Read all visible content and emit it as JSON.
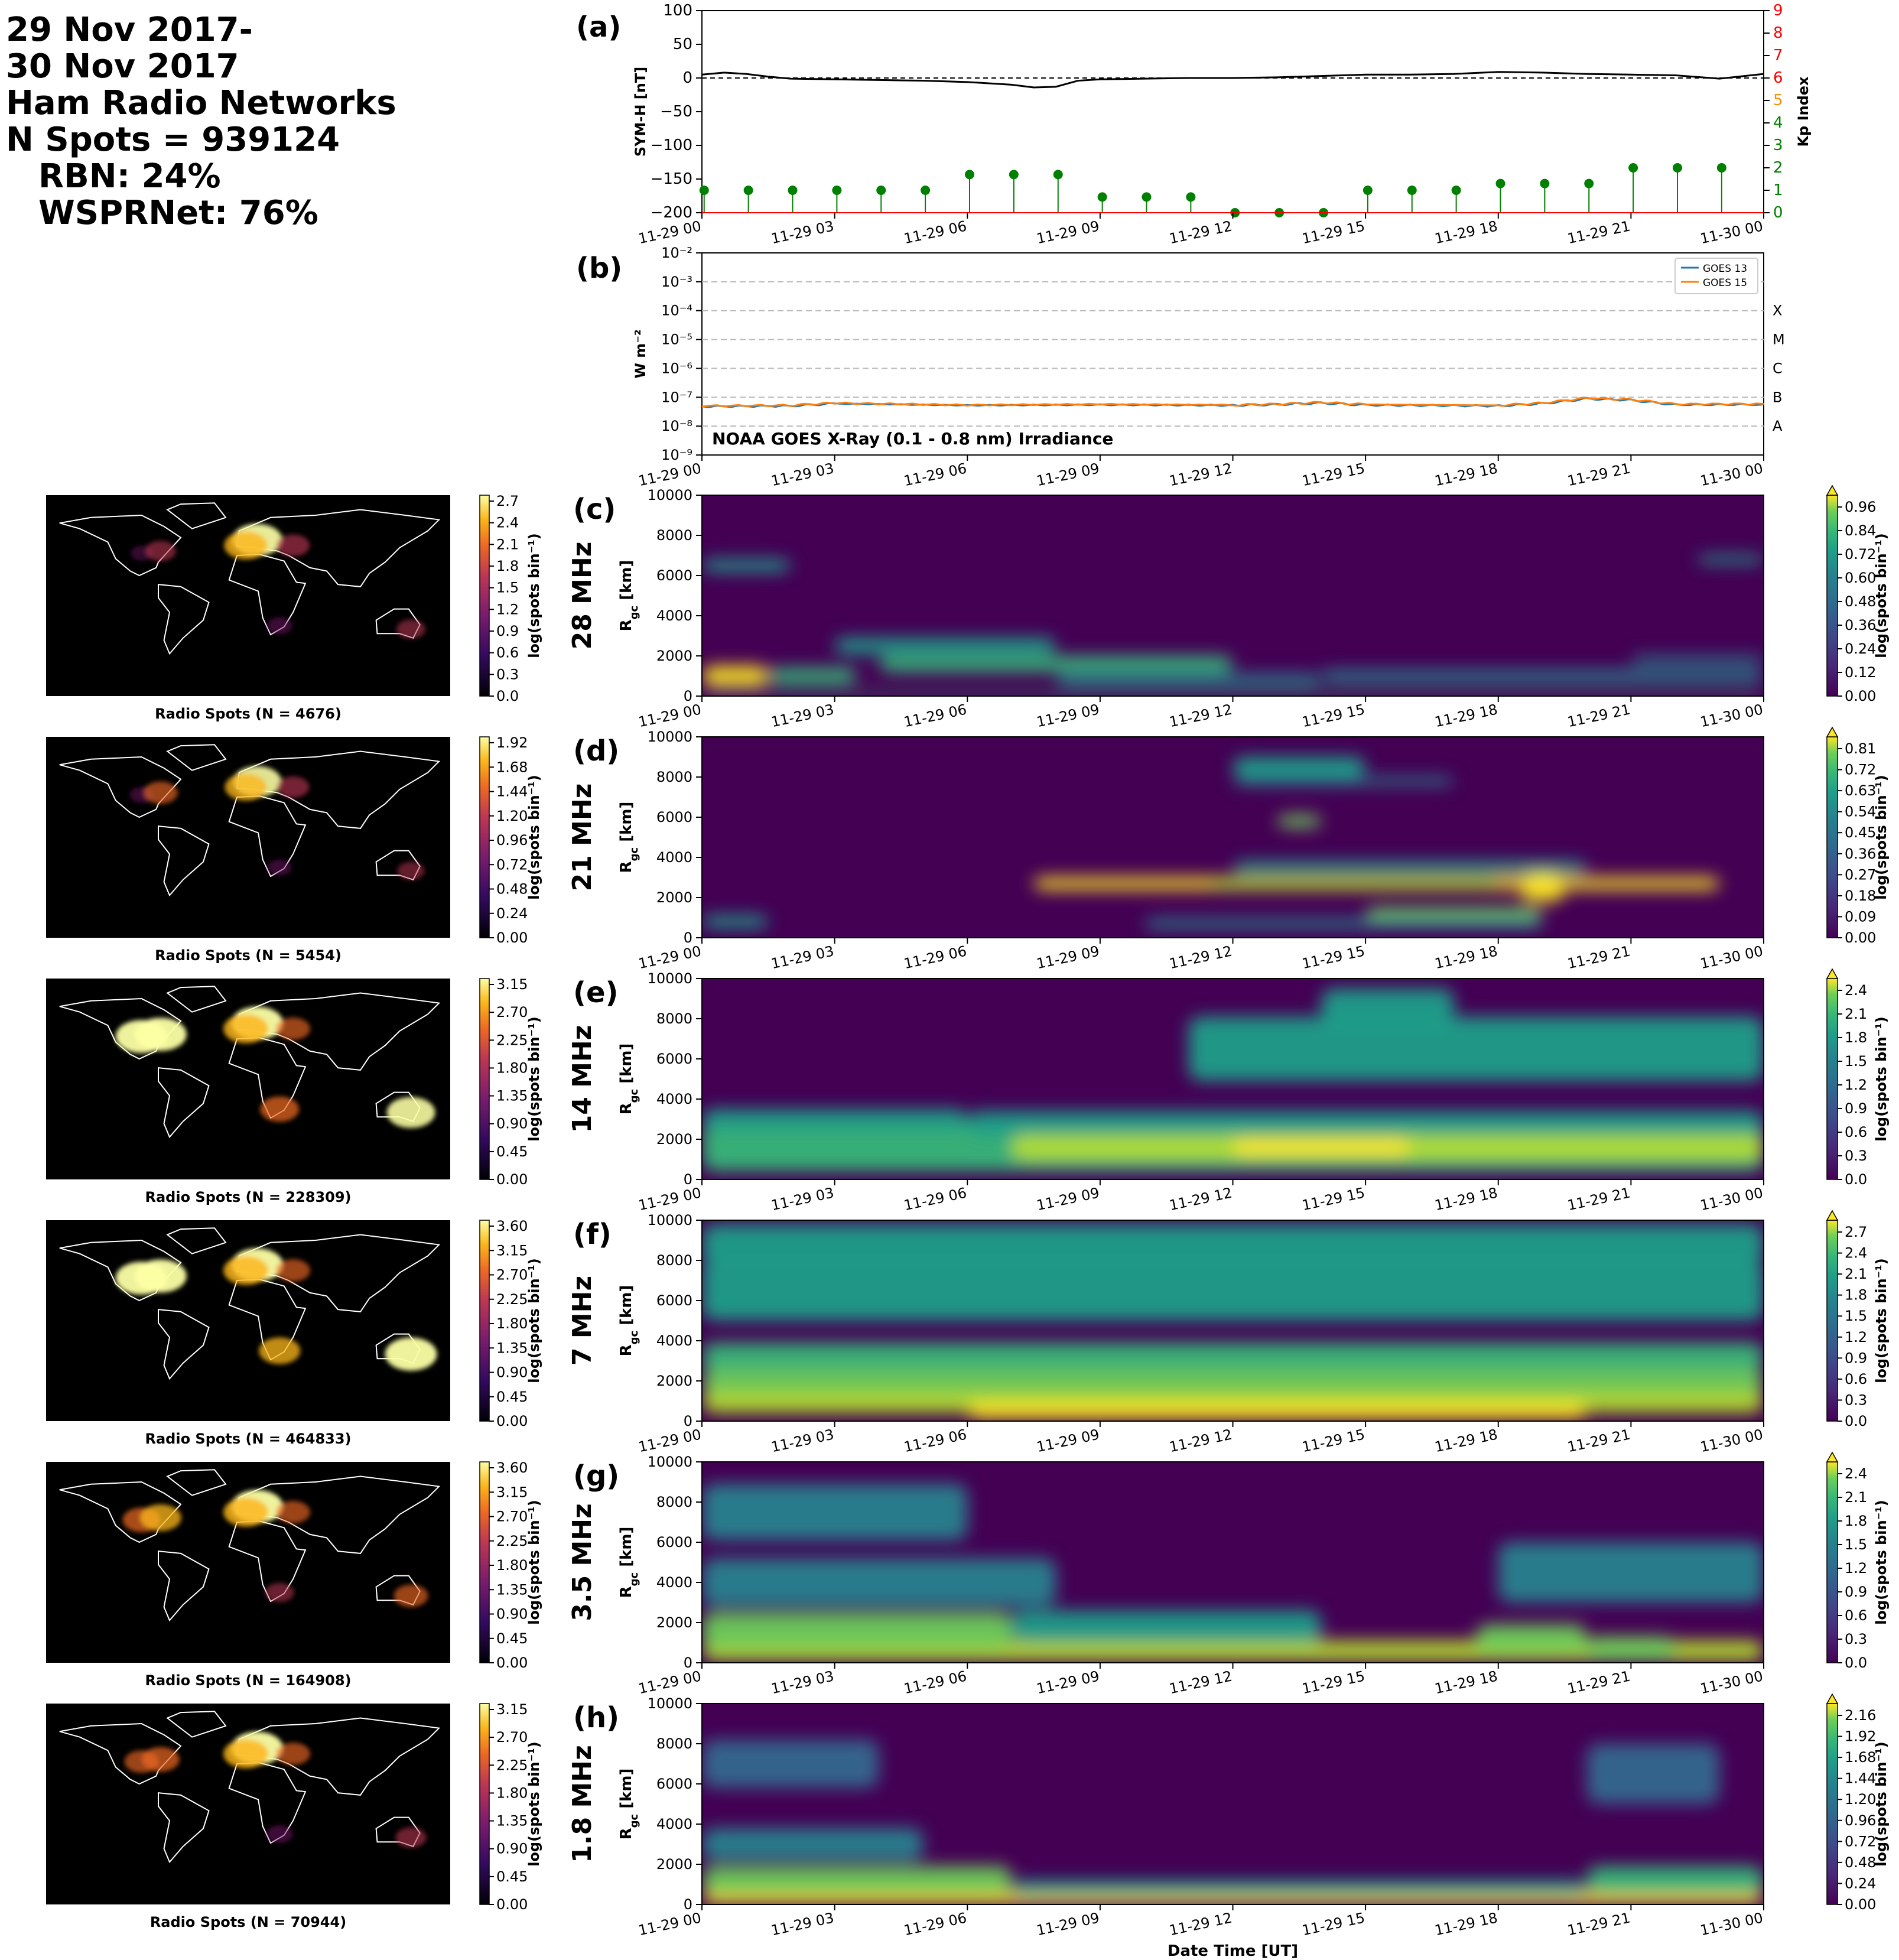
{
  "header": {
    "lines": [
      "29 Nov 2017-",
      "30 Nov 2017",
      "Ham Radio Networks",
      "N Spots = 939124"
    ],
    "rbn": "RBN: 24%",
    "wspr": "WSPRNet: 76%"
  },
  "time_ticks": [
    "11-29 00",
    "11-29 03",
    "11-29 06",
    "11-29 09",
    "11-29 12",
    "11-29 15",
    "11-29 18",
    "11-29 21",
    "11-30 00"
  ],
  "chart_data": [
    {
      "id": "a",
      "panel_label": "(a)",
      "type": "line",
      "ylabel": "SYM-H [nT]",
      "ylabel2": "Kp Index",
      "ylim": [
        -200,
        100
      ],
      "yticks": [
        100,
        50,
        0,
        -50,
        -100,
        -150,
        -200
      ],
      "y2lim": [
        0,
        9
      ],
      "y2ticks": [
        0,
        1,
        2,
        3,
        4,
        5,
        6,
        7,
        8,
        9
      ],
      "series": [
        {
          "name": "SYM-H",
          "x_hours": [
            0,
            0.5,
            1,
            1.5,
            2,
            3,
            4,
            5,
            6,
            7,
            7.5,
            8,
            8.5,
            9,
            10,
            11,
            12,
            13,
            14,
            15,
            16,
            17,
            18,
            19,
            20,
            21,
            22,
            23,
            24
          ],
          "values": [
            5,
            8,
            6,
            2,
            -1,
            -2,
            -3,
            -4,
            -6,
            -10,
            -14,
            -13,
            -4,
            -2,
            -1,
            0,
            0,
            1,
            3,
            5,
            5,
            6,
            9,
            8,
            6,
            5,
            4,
            -1,
            6
          ]
        },
        {
          "name": "Kp",
          "type": "stem",
          "x_hours": [
            0,
            1,
            2,
            3,
            4,
            5,
            6,
            7,
            8,
            9,
            10,
            11,
            12,
            13,
            14,
            15,
            16,
            17,
            18,
            19,
            20,
            21,
            22,
            23
          ],
          "values": [
            1,
            1,
            1,
            1,
            1,
            1,
            1.7,
            1.7,
            1.7,
            0.7,
            0.7,
            0.7,
            0,
            0,
            0,
            1,
            1,
            1,
            1.3,
            1.3,
            1.3,
            2,
            2,
            2
          ]
        }
      ]
    },
    {
      "id": "b",
      "panel_label": "(b)",
      "type": "line",
      "title": "NOAA GOES X-Ray (0.1 - 0.8 nm) Irradiance",
      "ylabel": "W m⁻²",
      "yscale": "log",
      "yticks": [
        "10⁻²",
        "10⁻³",
        "10⁻⁴",
        "10⁻⁵",
        "10⁻⁶",
        "10⁻⁷",
        "10⁻⁸",
        "10⁻⁹"
      ],
      "ylim_log10": [
        -9,
        -2
      ],
      "classes": [
        "X",
        "M",
        "C",
        "B",
        "A"
      ],
      "legend": [
        "GOES 13",
        "GOES 15"
      ],
      "series": [
        {
          "name": "GOES 13",
          "x_hours": [
            0,
            2,
            3,
            6,
            9,
            12,
            13,
            14,
            15,
            18,
            19,
            20,
            21,
            22,
            24
          ],
          "values_log10": [
            -7.32,
            -7.3,
            -7.22,
            -7.28,
            -7.26,
            -7.28,
            -7.25,
            -7.2,
            -7.27,
            -7.3,
            -7.22,
            -7.05,
            -7.1,
            -7.26,
            -7.25
          ]
        },
        {
          "name": "GOES 15",
          "x_hours": [
            0,
            2,
            3,
            6,
            9,
            12,
            13,
            14,
            15,
            18,
            19,
            20,
            21,
            22,
            24
          ],
          "values_log10": [
            -7.3,
            -7.28,
            -7.2,
            -7.27,
            -7.24,
            -7.27,
            -7.24,
            -7.18,
            -7.25,
            -7.28,
            -7.2,
            -7.03,
            -7.08,
            -7.24,
            -7.23
          ]
        }
      ]
    },
    {
      "id": "c",
      "panel_label": "(c)",
      "band": "28 MHz",
      "type": "heatmap",
      "ylabel": "Rgc [km]",
      "ylim": [
        0,
        10000
      ],
      "cbar_label": "log(spots bin⁻¹)",
      "cbar_ticks": [
        "0.00",
        "0.12",
        "0.24",
        "0.36",
        "0.48",
        "0.60",
        "0.72",
        "0.84",
        "0.96"
      ],
      "map_caption": "Radio Spots (N = 4676)",
      "map_cbar_ticks": [
        "0.0",
        "0.3",
        "0.6",
        "0.9",
        "1.2",
        "1.5",
        "1.8",
        "2.1",
        "2.4",
        "2.7"
      ],
      "blobs": [
        [
          0,
          1.5,
          1000,
          500,
          1
        ],
        [
          1.5,
          3.5,
          1000,
          400,
          0.6
        ],
        [
          3,
          8,
          2500,
          400,
          0.55
        ],
        [
          4,
          12,
          1600,
          400,
          0.6
        ],
        [
          8,
          14,
          800,
          300,
          0.4
        ],
        [
          0,
          2,
          6500,
          300,
          0.5
        ],
        [
          22.5,
          24,
          6800,
          200,
          0.5
        ],
        [
          14,
          24,
          1000,
          300,
          0.35
        ],
        [
          21,
          24,
          1800,
          200,
          0.4
        ],
        [
          0,
          24,
          100,
          80,
          0.6
        ]
      ]
    },
    {
      "id": "d",
      "panel_label": "(d)",
      "band": "21 MHz",
      "type": "heatmap",
      "ylabel": "Rgc [km]",
      "ylim": [
        0,
        10000
      ],
      "cbar_label": "log(spots bin⁻¹)",
      "cbar_ticks": [
        "0.00",
        "0.09",
        "0.18",
        "0.27",
        "0.36",
        "0.45",
        "0.54",
        "0.63",
        "0.72",
        "0.81"
      ],
      "map_caption": "Radio Spots (N = 5454)",
      "map_cbar_ticks": [
        "0.00",
        "0.24",
        "0.48",
        "0.72",
        "0.96",
        "1.20",
        "1.44",
        "1.68",
        "1.92"
      ],
      "blobs": [
        [
          7.5,
          23,
          2700,
          300,
          1
        ],
        [
          11.5,
          18,
          2700,
          300,
          0.9
        ],
        [
          15,
          19,
          1200,
          300,
          0.8
        ],
        [
          12,
          20,
          3500,
          300,
          0.55
        ],
        [
          12,
          15,
          8500,
          500,
          0.45
        ],
        [
          13,
          14,
          5800,
          300,
          0.8
        ],
        [
          18.5,
          19.5,
          2500,
          700,
          1
        ],
        [
          10,
          19,
          700,
          250,
          0.4
        ],
        [
          0,
          1.5,
          800,
          300,
          0.5
        ],
        [
          12,
          17,
          7800,
          200,
          0.4
        ]
      ]
    },
    {
      "id": "e",
      "panel_label": "(e)",
      "band": "14 MHz",
      "type": "heatmap",
      "ylabel": "Rgc [km]",
      "ylim": [
        0,
        10000
      ],
      "cbar_label": "log(spots bin⁻¹)",
      "cbar_ticks": [
        "0.0",
        "0.3",
        "0.6",
        "0.9",
        "1.2",
        "1.5",
        "1.8",
        "2.1",
        "2.4"
      ],
      "map_caption": "Radio Spots (N = 228309)",
      "map_cbar_ticks": [
        "0.00",
        "0.45",
        "0.90",
        "1.35",
        "1.80",
        "2.25",
        "2.70",
        "3.15"
      ],
      "blobs": [
        [
          0,
          24,
          1600,
          1200,
          0.6
        ],
        [
          7,
          24,
          1600,
          600,
          0.85
        ],
        [
          12,
          16,
          1600,
          400,
          1
        ],
        [
          0,
          6,
          3000,
          500,
          0.5
        ],
        [
          11,
          24,
          6500,
          1600,
          0.45
        ],
        [
          14,
          17,
          8500,
          1000,
          0.45
        ],
        [
          6,
          24,
          2800,
          600,
          0.55
        ]
      ]
    },
    {
      "id": "f",
      "panel_label": "(f)",
      "band": "7 MHz",
      "type": "heatmap",
      "ylabel": "Rgc [km]",
      "ylim": [
        0,
        10000
      ],
      "cbar_label": "log(spots bin⁻¹)",
      "cbar_ticks": [
        "0.0",
        "0.3",
        "0.6",
        "0.9",
        "1.2",
        "1.5",
        "1.8",
        "2.1",
        "2.4",
        "2.7"
      ],
      "map_caption": "Radio Spots (N = 464833)",
      "map_cbar_ticks": [
        "0.00",
        "0.45",
        "0.90",
        "1.35",
        "1.80",
        "2.25",
        "2.70",
        "3.15",
        "3.60"
      ],
      "blobs": [
        [
          0,
          24,
          1000,
          600,
          0.85
        ],
        [
          6,
          20,
          500,
          400,
          1
        ],
        [
          0,
          24,
          3200,
          700,
          0.6
        ],
        [
          0,
          24,
          6500,
          1500,
          0.45
        ],
        [
          0,
          24,
          8800,
          1000,
          0.45
        ],
        [
          0,
          24,
          2000,
          600,
          0.7
        ]
      ]
    },
    {
      "id": "g",
      "panel_label": "(g)",
      "band": "3.5 MHz",
      "type": "heatmap",
      "ylabel": "Rgc [km]",
      "ylim": [
        0,
        10000
      ],
      "cbar_label": "log(spots bin⁻¹)",
      "cbar_ticks": [
        "0.0",
        "0.3",
        "0.6",
        "0.9",
        "1.2",
        "1.5",
        "1.8",
        "2.1",
        "2.4"
      ],
      "map_caption": "Radio Spots (N = 164908)",
      "map_cbar_ticks": [
        "0.00",
        "0.45",
        "0.90",
        "1.35",
        "1.80",
        "2.25",
        "2.70",
        "3.15",
        "3.60"
      ],
      "blobs": [
        [
          0,
          24,
          600,
          500,
          0.9
        ],
        [
          0,
          7,
          1600,
          900,
          0.7
        ],
        [
          0,
          8,
          4000,
          1200,
          0.4
        ],
        [
          0,
          6,
          7500,
          1400,
          0.35
        ],
        [
          17.5,
          20,
          1200,
          700,
          0.7
        ],
        [
          20,
          22,
          700,
          600,
          0.8
        ],
        [
          18,
          24,
          4500,
          1500,
          0.35
        ],
        [
          7,
          14,
          1800,
          800,
          0.5
        ]
      ]
    },
    {
      "id": "h",
      "panel_label": "(h)",
      "band": "1.8 MHz",
      "type": "heatmap",
      "ylabel": "Rgc [km]",
      "ylim": [
        0,
        10000
      ],
      "cbar_label": "log(spots bin⁻¹)",
      "cbar_ticks": [
        "0.00",
        "0.24",
        "0.48",
        "0.72",
        "0.96",
        "1.20",
        "1.44",
        "1.68",
        "1.92",
        "2.16"
      ],
      "map_caption": "Radio Spots (N = 70944)",
      "map_cbar_ticks": [
        "0.00",
        "0.45",
        "0.90",
        "1.35",
        "1.80",
        "2.25",
        "2.70",
        "3.15"
      ],
      "blobs": [
        [
          0,
          24,
          300,
          300,
          0.95
        ],
        [
          0,
          7,
          1200,
          700,
          0.7
        ],
        [
          0,
          5,
          3000,
          800,
          0.35
        ],
        [
          0,
          4,
          7000,
          1200,
          0.25
        ],
        [
          20,
          24,
          1200,
          700,
          0.6
        ],
        [
          20,
          23,
          6500,
          1500,
          0.25
        ],
        [
          7,
          20,
          800,
          400,
          0.45
        ]
      ]
    }
  ],
  "yticks_rgc": [
    "0",
    "2000",
    "4000",
    "6000",
    "8000",
    "10000"
  ],
  "xlabel": "Date Time [UT]",
  "colors": {
    "kp": "#008000",
    "symh": "#000000",
    "goes13": "#1f77b4",
    "goes15": "#ff7f0e",
    "red_axis": "#ff0000",
    "orange_tick": "#ff8c00"
  }
}
